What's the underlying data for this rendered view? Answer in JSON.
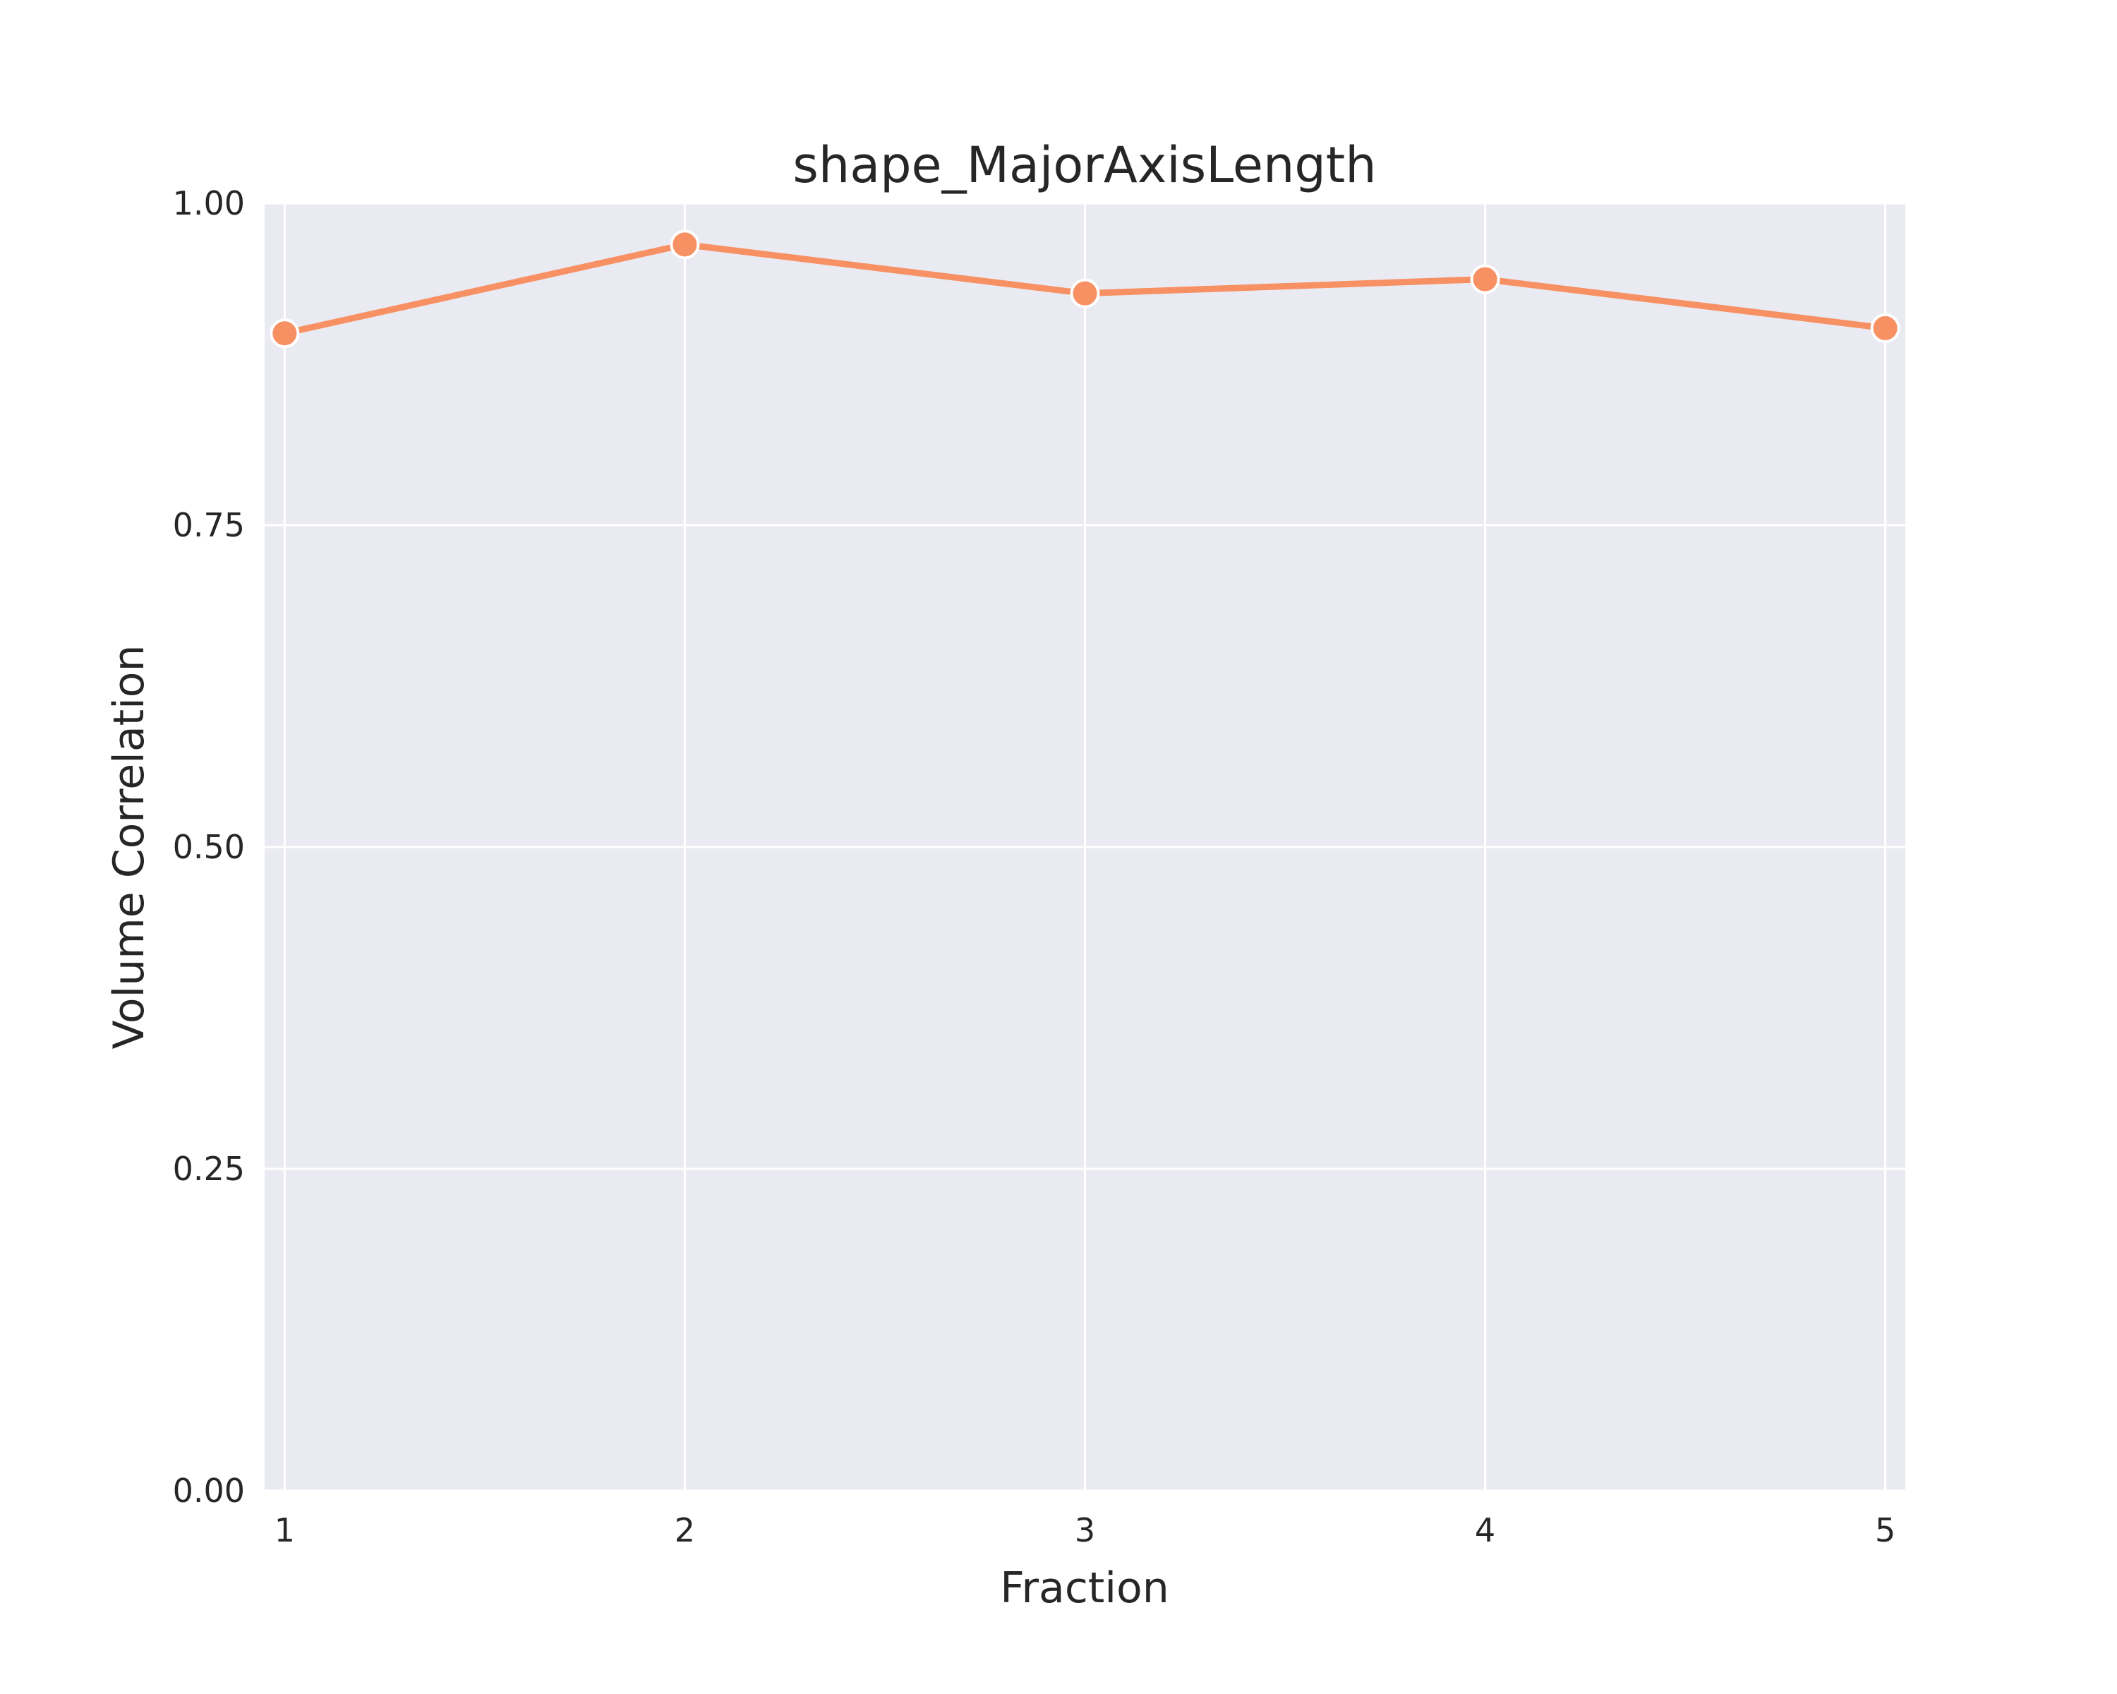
{
  "chart_data": {
    "type": "line",
    "title": "shape_MajorAxisLength",
    "xlabel": "Fraction",
    "ylabel": "Volume Correlation",
    "x": [
      1,
      2,
      3,
      4,
      5
    ],
    "xticks": [
      1,
      2,
      3,
      4,
      5
    ],
    "xlim": [
      0.95,
      5.05
    ],
    "ylim": [
      0,
      1
    ],
    "yticks": [
      0,
      0.25,
      0.5,
      0.75,
      1.0
    ],
    "ytick_labels": [
      "0.00",
      "0.25",
      "0.50",
      "0.75",
      "1.00"
    ],
    "grid": true,
    "series": [
      {
        "values": [
          0.899,
          0.968,
          0.93,
          0.941,
          0.903
        ],
        "color": "#F79062"
      }
    ],
    "colors": {
      "plot_background": "#EAEAF2",
      "grid": "#FFFFFF",
      "line": "#F79062"
    }
  }
}
